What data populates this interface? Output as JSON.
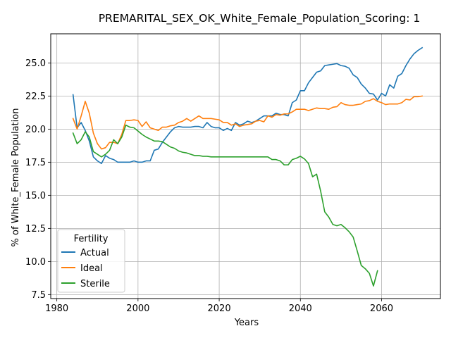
{
  "chart_data": {
    "type": "line",
    "title": "PREMARITAL_SEX_OK_White_Female_Population_Scoring: 1",
    "xlabel": "Years",
    "ylabel": "% of White_Female Population",
    "xlim": [
      1978.5,
      2074.5
    ],
    "ylim": [
      7.2,
      27.2
    ],
    "xticks": [
      1980,
      2000,
      2020,
      2040,
      2060
    ],
    "yticks": [
      7.5,
      10.0,
      12.5,
      15.0,
      17.5,
      20.0,
      22.5,
      25.0
    ],
    "ytick_labels": [
      "7.5",
      "10.0",
      "12.5",
      "15.0",
      "17.5",
      "20.0",
      "22.5",
      "25.0"
    ],
    "grid": true,
    "legend": {
      "title": "Fertility",
      "placement": "lower-left"
    },
    "series": [
      {
        "name": "Actual",
        "color": "#1f77b4",
        "points": [
          [
            1984,
            22.6
          ],
          [
            1985,
            20.1
          ],
          [
            1986,
            20.5
          ],
          [
            1987,
            19.9
          ],
          [
            1988,
            19.1
          ],
          [
            1989,
            17.9
          ],
          [
            1990,
            17.6
          ],
          [
            1991,
            17.4
          ],
          [
            1992,
            18.0
          ],
          [
            1993,
            17.8
          ],
          [
            1994,
            17.7
          ],
          [
            1995,
            17.5
          ],
          [
            1996,
            17.5
          ],
          [
            1997,
            17.5
          ],
          [
            1998,
            17.5
          ],
          [
            1999,
            17.6
          ],
          [
            2000,
            17.5
          ],
          [
            2001,
            17.5
          ],
          [
            2002,
            17.6
          ],
          [
            2003,
            17.6
          ],
          [
            2004,
            18.4
          ],
          [
            2005,
            18.5
          ],
          [
            2006,
            19.0
          ],
          [
            2007,
            19.4
          ],
          [
            2008,
            19.8
          ],
          [
            2009,
            20.1
          ],
          [
            2010,
            20.2
          ],
          [
            2011,
            20.15
          ],
          [
            2012,
            20.15
          ],
          [
            2013,
            20.15
          ],
          [
            2014,
            20.2
          ],
          [
            2015,
            20.2
          ],
          [
            2016,
            20.1
          ],
          [
            2017,
            20.5
          ],
          [
            2018,
            20.2
          ],
          [
            2019,
            20.1
          ],
          [
            2020,
            20.1
          ],
          [
            2021,
            19.9
          ],
          [
            2022,
            20.05
          ],
          [
            2023,
            19.9
          ],
          [
            2024,
            20.5
          ],
          [
            2025,
            20.3
          ],
          [
            2026,
            20.4
          ],
          [
            2027,
            20.6
          ],
          [
            2028,
            20.5
          ],
          [
            2029,
            20.6
          ],
          [
            2030,
            20.8
          ],
          [
            2031,
            21.0
          ],
          [
            2032,
            21.0
          ],
          [
            2033,
            21.0
          ],
          [
            2034,
            21.2
          ],
          [
            2035,
            21.1
          ],
          [
            2036,
            21.1
          ],
          [
            2037,
            21.0
          ],
          [
            2038,
            22.0
          ],
          [
            2039,
            22.2
          ],
          [
            2040,
            22.9
          ],
          [
            2041,
            22.9
          ],
          [
            2042,
            23.5
          ],
          [
            2043,
            23.9
          ],
          [
            2044,
            24.3
          ],
          [
            2045,
            24.4
          ],
          [
            2046,
            24.8
          ],
          [
            2047,
            24.85
          ],
          [
            2048,
            24.9
          ],
          [
            2049,
            24.95
          ],
          [
            2050,
            24.8
          ],
          [
            2051,
            24.75
          ],
          [
            2052,
            24.6
          ],
          [
            2053,
            24.1
          ],
          [
            2054,
            23.9
          ],
          [
            2055,
            23.4
          ],
          [
            2056,
            23.1
          ],
          [
            2057,
            22.7
          ],
          [
            2058,
            22.65
          ],
          [
            2059,
            22.2
          ],
          [
            2060,
            22.7
          ],
          [
            2061,
            22.5
          ],
          [
            2062,
            23.35
          ],
          [
            2063,
            23.1
          ],
          [
            2064,
            24.0
          ],
          [
            2065,
            24.2
          ],
          [
            2066,
            24.8
          ],
          [
            2067,
            25.3
          ],
          [
            2068,
            25.7
          ],
          [
            2069,
            25.95
          ],
          [
            2070,
            26.15
          ]
        ]
      },
      {
        "name": "Ideal",
        "color": "#ff7f0e",
        "points": [
          [
            1984,
            20.8
          ],
          [
            1985,
            20.0
          ],
          [
            1986,
            21.0
          ],
          [
            1987,
            22.1
          ],
          [
            1988,
            21.2
          ],
          [
            1989,
            19.7
          ],
          [
            1990,
            18.9
          ],
          [
            1991,
            18.5
          ],
          [
            1992,
            18.6
          ],
          [
            1993,
            19.0
          ],
          [
            1994,
            19.0
          ],
          [
            1995,
            18.9
          ],
          [
            1996,
            19.6
          ],
          [
            1997,
            20.65
          ],
          [
            1998,
            20.65
          ],
          [
            1999,
            20.7
          ],
          [
            2000,
            20.65
          ],
          [
            2001,
            20.2
          ],
          [
            2002,
            20.55
          ],
          [
            2003,
            20.1
          ],
          [
            2004,
            20.0
          ],
          [
            2005,
            19.9
          ],
          [
            2006,
            20.15
          ],
          [
            2007,
            20.15
          ],
          [
            2008,
            20.25
          ],
          [
            2009,
            20.3
          ],
          [
            2010,
            20.5
          ],
          [
            2011,
            20.6
          ],
          [
            2012,
            20.8
          ],
          [
            2013,
            20.6
          ],
          [
            2014,
            20.8
          ],
          [
            2015,
            21.0
          ],
          [
            2016,
            20.8
          ],
          [
            2017,
            20.8
          ],
          [
            2018,
            20.8
          ],
          [
            2019,
            20.75
          ],
          [
            2020,
            20.7
          ],
          [
            2021,
            20.5
          ],
          [
            2022,
            20.5
          ],
          [
            2023,
            20.3
          ],
          [
            2024,
            20.4
          ],
          [
            2025,
            20.2
          ],
          [
            2026,
            20.3
          ],
          [
            2027,
            20.35
          ],
          [
            2028,
            20.4
          ],
          [
            2029,
            20.6
          ],
          [
            2030,
            20.65
          ],
          [
            2031,
            20.55
          ],
          [
            2032,
            21.0
          ],
          [
            2033,
            20.9
          ],
          [
            2034,
            21.1
          ],
          [
            2035,
            21.05
          ],
          [
            2036,
            21.15
          ],
          [
            2037,
            21.15
          ],
          [
            2038,
            21.3
          ],
          [
            2039,
            21.5
          ],
          [
            2040,
            21.5
          ],
          [
            2041,
            21.5
          ],
          [
            2042,
            21.4
          ],
          [
            2043,
            21.5
          ],
          [
            2044,
            21.6
          ],
          [
            2045,
            21.55
          ],
          [
            2046,
            21.55
          ],
          [
            2047,
            21.5
          ],
          [
            2048,
            21.65
          ],
          [
            2049,
            21.7
          ],
          [
            2050,
            22.0
          ],
          [
            2051,
            21.85
          ],
          [
            2052,
            21.8
          ],
          [
            2053,
            21.8
          ],
          [
            2054,
            21.85
          ],
          [
            2055,
            21.9
          ],
          [
            2056,
            22.1
          ],
          [
            2057,
            22.15
          ],
          [
            2058,
            22.3
          ],
          [
            2059,
            22.1
          ],
          [
            2060,
            22.0
          ],
          [
            2061,
            21.85
          ],
          [
            2062,
            21.9
          ],
          [
            2063,
            21.9
          ],
          [
            2064,
            21.9
          ],
          [
            2065,
            22.0
          ],
          [
            2066,
            22.25
          ],
          [
            2067,
            22.2
          ],
          [
            2068,
            22.45
          ],
          [
            2069,
            22.45
          ],
          [
            2070,
            22.5
          ]
        ]
      },
      {
        "name": "Sterile",
        "color": "#2ca02c",
        "points": [
          [
            1984,
            19.7
          ],
          [
            1985,
            18.9
          ],
          [
            1986,
            19.2
          ],
          [
            1987,
            19.8
          ],
          [
            1988,
            19.4
          ],
          [
            1989,
            18.3
          ],
          [
            1990,
            18.1
          ],
          [
            1991,
            17.9
          ],
          [
            1992,
            18.1
          ],
          [
            1993,
            18.4
          ],
          [
            1994,
            19.2
          ],
          [
            1995,
            18.9
          ],
          [
            1996,
            19.4
          ],
          [
            1997,
            20.3
          ],
          [
            1998,
            20.15
          ],
          [
            1999,
            20.1
          ],
          [
            2000,
            19.85
          ],
          [
            2001,
            19.6
          ],
          [
            2002,
            19.4
          ],
          [
            2003,
            19.25
          ],
          [
            2004,
            19.1
          ],
          [
            2005,
            19.1
          ],
          [
            2006,
            19.05
          ],
          [
            2007,
            18.85
          ],
          [
            2008,
            18.65
          ],
          [
            2009,
            18.55
          ],
          [
            2010,
            18.35
          ],
          [
            2011,
            18.25
          ],
          [
            2012,
            18.2
          ],
          [
            2013,
            18.1
          ],
          [
            2014,
            18.0
          ],
          [
            2015,
            18.0
          ],
          [
            2016,
            17.95
          ],
          [
            2017,
            17.95
          ],
          [
            2018,
            17.9
          ],
          [
            2019,
            17.9
          ],
          [
            2020,
            17.9
          ],
          [
            2021,
            17.9
          ],
          [
            2022,
            17.9
          ],
          [
            2023,
            17.9
          ],
          [
            2024,
            17.9
          ],
          [
            2025,
            17.9
          ],
          [
            2026,
            17.9
          ],
          [
            2027,
            17.9
          ],
          [
            2028,
            17.9
          ],
          [
            2029,
            17.9
          ],
          [
            2030,
            17.9
          ],
          [
            2031,
            17.9
          ],
          [
            2032,
            17.9
          ],
          [
            2033,
            17.7
          ],
          [
            2034,
            17.7
          ],
          [
            2035,
            17.6
          ],
          [
            2036,
            17.3
          ],
          [
            2037,
            17.3
          ],
          [
            2038,
            17.7
          ],
          [
            2039,
            17.8
          ],
          [
            2040,
            17.95
          ],
          [
            2041,
            17.75
          ],
          [
            2042,
            17.4
          ],
          [
            2043,
            16.4
          ],
          [
            2044,
            16.6
          ],
          [
            2045,
            15.3
          ],
          [
            2046,
            13.75
          ],
          [
            2047,
            13.35
          ],
          [
            2048,
            12.8
          ],
          [
            2049,
            12.7
          ],
          [
            2050,
            12.8
          ],
          [
            2051,
            12.55
          ],
          [
            2052,
            12.25
          ],
          [
            2053,
            11.85
          ],
          [
            2054,
            10.8
          ],
          [
            2055,
            9.7
          ],
          [
            2056,
            9.45
          ],
          [
            2057,
            9.1
          ],
          [
            2058,
            8.15
          ],
          [
            2059,
            9.3
          ]
        ]
      }
    ]
  }
}
